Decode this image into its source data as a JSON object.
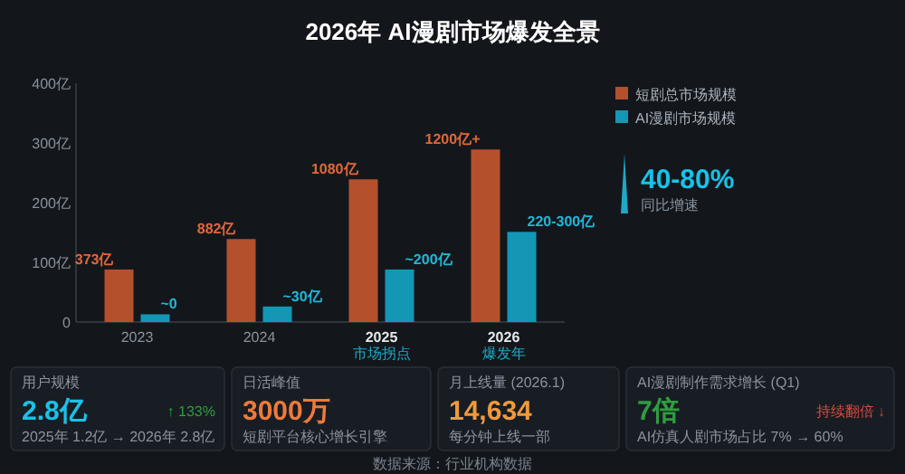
{
  "chart_data": {
    "type": "bar",
    "title": "2026年 AI漫剧市场爆发全景",
    "categories": [
      "2023",
      "2024",
      "2025",
      "2026"
    ],
    "series": [
      {
        "name": "短剧总市场规模",
        "color": "#b5502d",
        "values": [
          88,
          139,
          239,
          289
        ]
      },
      {
        "name": "AI漫剧市场规模",
        "color": "#1497b5",
        "values": [
          13,
          26,
          88,
          151
        ]
      }
    ],
    "ylim": [
      0,
      400
    ],
    "yticks": [
      0,
      {
        "value": 100,
        "label": "100亿"
      },
      {
        "value": 200,
        "label": "200亿"
      },
      {
        "value": 300,
        "label": "300亿"
      },
      {
        "value": 400,
        "label": "400亿"
      }
    ],
    "grid": false,
    "legend": "top right",
    "annotations": [
      {
        "text": "373亿",
        "x": "2023",
        "y": 88
      },
      {
        "text": "882亿",
        "x": "2024",
        "y": 139
      },
      {
        "text": "1080亿",
        "x": "2025",
        "y": 239
      },
      {
        "text": "1200亿+",
        "x": "2026",
        "y": 289
      },
      {
        "text": "~0",
        "x": "2023",
        "y": 13
      },
      {
        "text": "~30亿",
        "x": "2024",
        "y": 26
      },
      {
        "text": "~200亿",
        "x": "2025",
        "y": 88
      },
      {
        "text": "220-300亿",
        "x": "2026",
        "y": 151
      },
      "市场拐点",
      "爆发年",
      "40-80%",
      "同比增速",
      "用户规模",
      "2.8亿",
      "↑ 133%",
      "2025年 1.2亿 → 2026年 2.8亿",
      "日活峰值",
      "3000万",
      "短剧平台核心增长引擎",
      "月上线量 (2026.1)",
      "14,634",
      "每分钟上线一部",
      "AI漫剧制作需求增长 (Q1)",
      "7倍",
      "持续翻倍 ↓",
      "AI仿真人剧市场占比 7% → 60%",
      "数据来源：行业机构数据"
    ]
  }
}
